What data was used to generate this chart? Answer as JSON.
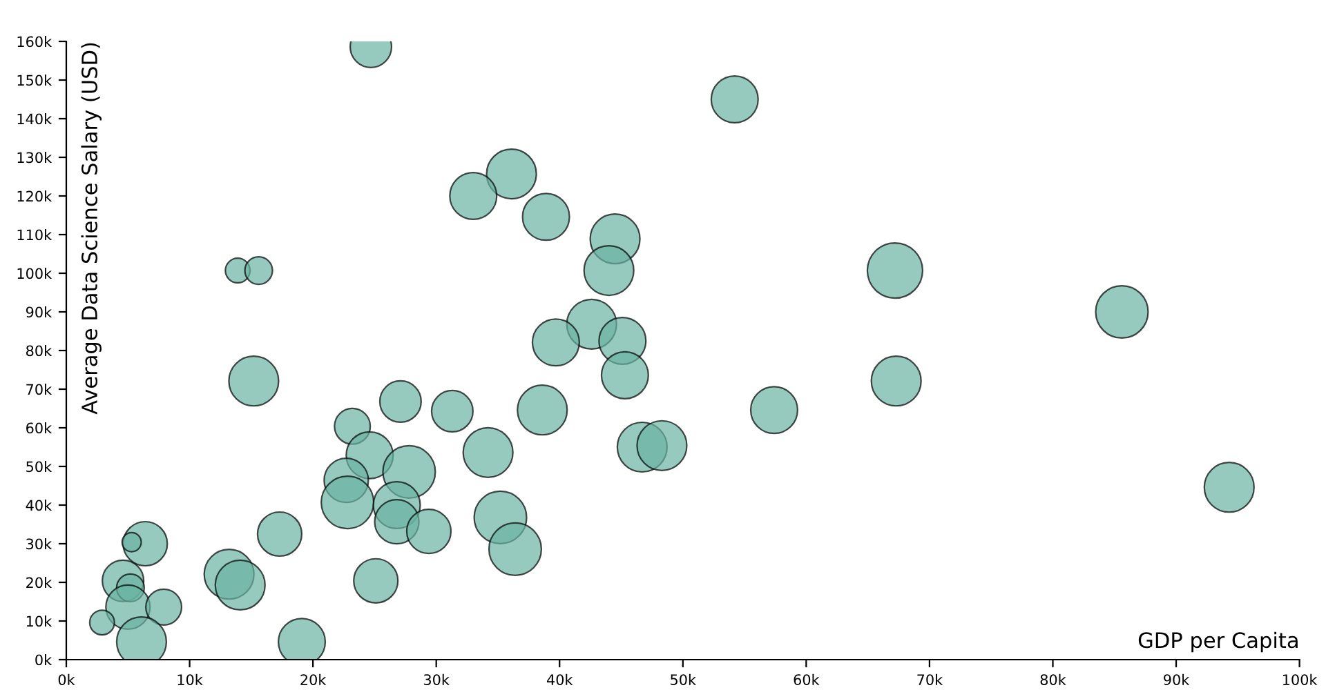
{
  "chart_data": {
    "type": "bubble",
    "xlabel": "GDP per Capita",
    "ylabel": "Average Data Science Salary (USD)",
    "xlim": [
      0,
      100000
    ],
    "ylim": [
      0,
      160000
    ],
    "xticks": [
      {
        "value": 0,
        "label": "0k"
      },
      {
        "value": 10000,
        "label": "10k"
      },
      {
        "value": 20000,
        "label": "20k"
      },
      {
        "value": 30000,
        "label": "30k"
      },
      {
        "value": 40000,
        "label": "40k"
      },
      {
        "value": 50000,
        "label": "50k"
      },
      {
        "value": 60000,
        "label": "60k"
      },
      {
        "value": 70000,
        "label": "70k"
      },
      {
        "value": 80000,
        "label": "80k"
      },
      {
        "value": 90000,
        "label": "90k"
      },
      {
        "value": 100000,
        "label": "100k"
      }
    ],
    "yticks": [
      {
        "value": 0,
        "label": "0k"
      },
      {
        "value": 10000,
        "label": "10k"
      },
      {
        "value": 20000,
        "label": "20k"
      },
      {
        "value": 30000,
        "label": "30k"
      },
      {
        "value": 40000,
        "label": "40k"
      },
      {
        "value": 50000,
        "label": "50k"
      },
      {
        "value": 60000,
        "label": "60k"
      },
      {
        "value": 70000,
        "label": "70k"
      },
      {
        "value": 80000,
        "label": "80k"
      },
      {
        "value": 90000,
        "label": "90k"
      },
      {
        "value": 100000,
        "label": "100k"
      },
      {
        "value": 110000,
        "label": "110k"
      },
      {
        "value": 120000,
        "label": "120k"
      },
      {
        "value": 130000,
        "label": "130k"
      },
      {
        "value": 140000,
        "label": "140k"
      },
      {
        "value": 150000,
        "label": "150k"
      },
      {
        "value": 160000,
        "label": "160k"
      }
    ],
    "grid": false,
    "legend": false,
    "series": [
      {
        "color": "#69b3a2",
        "x": [
          24700,
          54200,
          36100,
          33000,
          38900,
          44500,
          44000,
          67200,
          13900,
          15600,
          85600,
          42600,
          39700,
          45100,
          45300,
          15200,
          67300,
          27100,
          38600,
          31300,
          57400,
          23200,
          34200,
          24600,
          46700,
          48300,
          27800,
          22700,
          22800,
          26800,
          26800,
          29400,
          35200,
          36400,
          17300,
          6400,
          5300,
          4600,
          5200,
          13200,
          14100,
          25100,
          5000,
          7900,
          2900,
          6100,
          19100,
          94300
        ],
        "values": [
          158600,
          145000,
          125700,
          120000,
          114600,
          108900,
          100700,
          100700,
          100700,
          100700,
          90000,
          86800,
          82100,
          82500,
          73600,
          72100,
          72100,
          66800,
          64600,
          64300,
          64600,
          60400,
          53600,
          52900,
          55000,
          55400,
          48600,
          46400,
          40700,
          40000,
          35700,
          33200,
          36800,
          28600,
          32500,
          30000,
          30400,
          20400,
          18600,
          22100,
          19300,
          20400,
          13600,
          13600,
          9600,
          4600,
          4600,
          44600
        ],
        "sizes": [
          0.56,
          0.72,
          0.81,
          0.72,
          0.72,
          0.81,
          0.81,
          1,
          0.2,
          0.25,
          0.9,
          0.81,
          0.72,
          0.72,
          0.72,
          0.81,
          0.81,
          0.56,
          0.81,
          0.56,
          0.72,
          0.42,
          0.81,
          0.72,
          0.81,
          0.81,
          0.9,
          0.64,
          0.9,
          0.72,
          0.64,
          0.64,
          0.9,
          0.9,
          0.64,
          0.64,
          0.12,
          0.56,
          0.25,
          0.81,
          0.81,
          0.64,
          0.64,
          0.42,
          0.2,
          0.81,
          0.72,
          0.81
        ]
      }
    ]
  }
}
